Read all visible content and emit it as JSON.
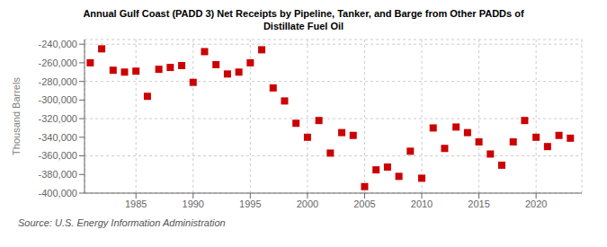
{
  "chart_data": {
    "type": "scatter",
    "title": "Annual Gulf Coast (PADD 3) Net Receipts by Pipeline, Tanker, and Barge from Other PADDs of\nDistillate Fuel Oil",
    "ylabel": "Thousand Barrels",
    "source": "Source: U.S. Energy Information Administration",
    "x": [
      1981,
      1982,
      1983,
      1984,
      1985,
      1986,
      1987,
      1988,
      1989,
      1990,
      1991,
      1992,
      1993,
      1994,
      1995,
      1996,
      1997,
      1998,
      1999,
      2000,
      2001,
      2002,
      2003,
      2004,
      2005,
      2006,
      2007,
      2008,
      2009,
      2010,
      2011,
      2012,
      2013,
      2014,
      2015,
      2016,
      2017,
      2018,
      2019,
      2020,
      2021,
      2022,
      2023
    ],
    "values": [
      -260000,
      -245000,
      -268000,
      -270000,
      -269000,
      -296000,
      -267000,
      -265000,
      -263000,
      -281000,
      -248000,
      -262000,
      -272000,
      -270000,
      -260000,
      -246000,
      -287000,
      -301000,
      -325000,
      -340000,
      -322000,
      -357000,
      -335000,
      -338000,
      -393000,
      -375000,
      -372000,
      -382000,
      -355000,
      -384000,
      -330000,
      -352000,
      -329000,
      -335000,
      -345000,
      -358000,
      -370000,
      -345000,
      -322000,
      -340000,
      -350000,
      -338000,
      -341000
    ],
    "color": "#cc0000",
    "marker": "square",
    "xlim": [
      1980.5,
      2024
    ],
    "xticks": [
      1985,
      1990,
      1995,
      2000,
      2005,
      2010,
      2015,
      2020
    ],
    "ylim": [
      -400000,
      -235000
    ],
    "yticks": [
      {
        "value": -400000,
        "label": "-400,000"
      },
      {
        "value": -380000,
        "label": "-380,000"
      },
      {
        "value": -360000,
        "label": "-360,000"
      },
      {
        "value": -340000,
        "label": "-340,000"
      },
      {
        "value": -320000,
        "label": "-320,000"
      },
      {
        "value": -300000,
        "label": "-300,000"
      },
      {
        "value": -280000,
        "label": "-280,000"
      },
      {
        "value": -260000,
        "label": "-260,000"
      },
      {
        "value": -240000,
        "label": "-240,000"
      }
    ],
    "grid": true
  }
}
